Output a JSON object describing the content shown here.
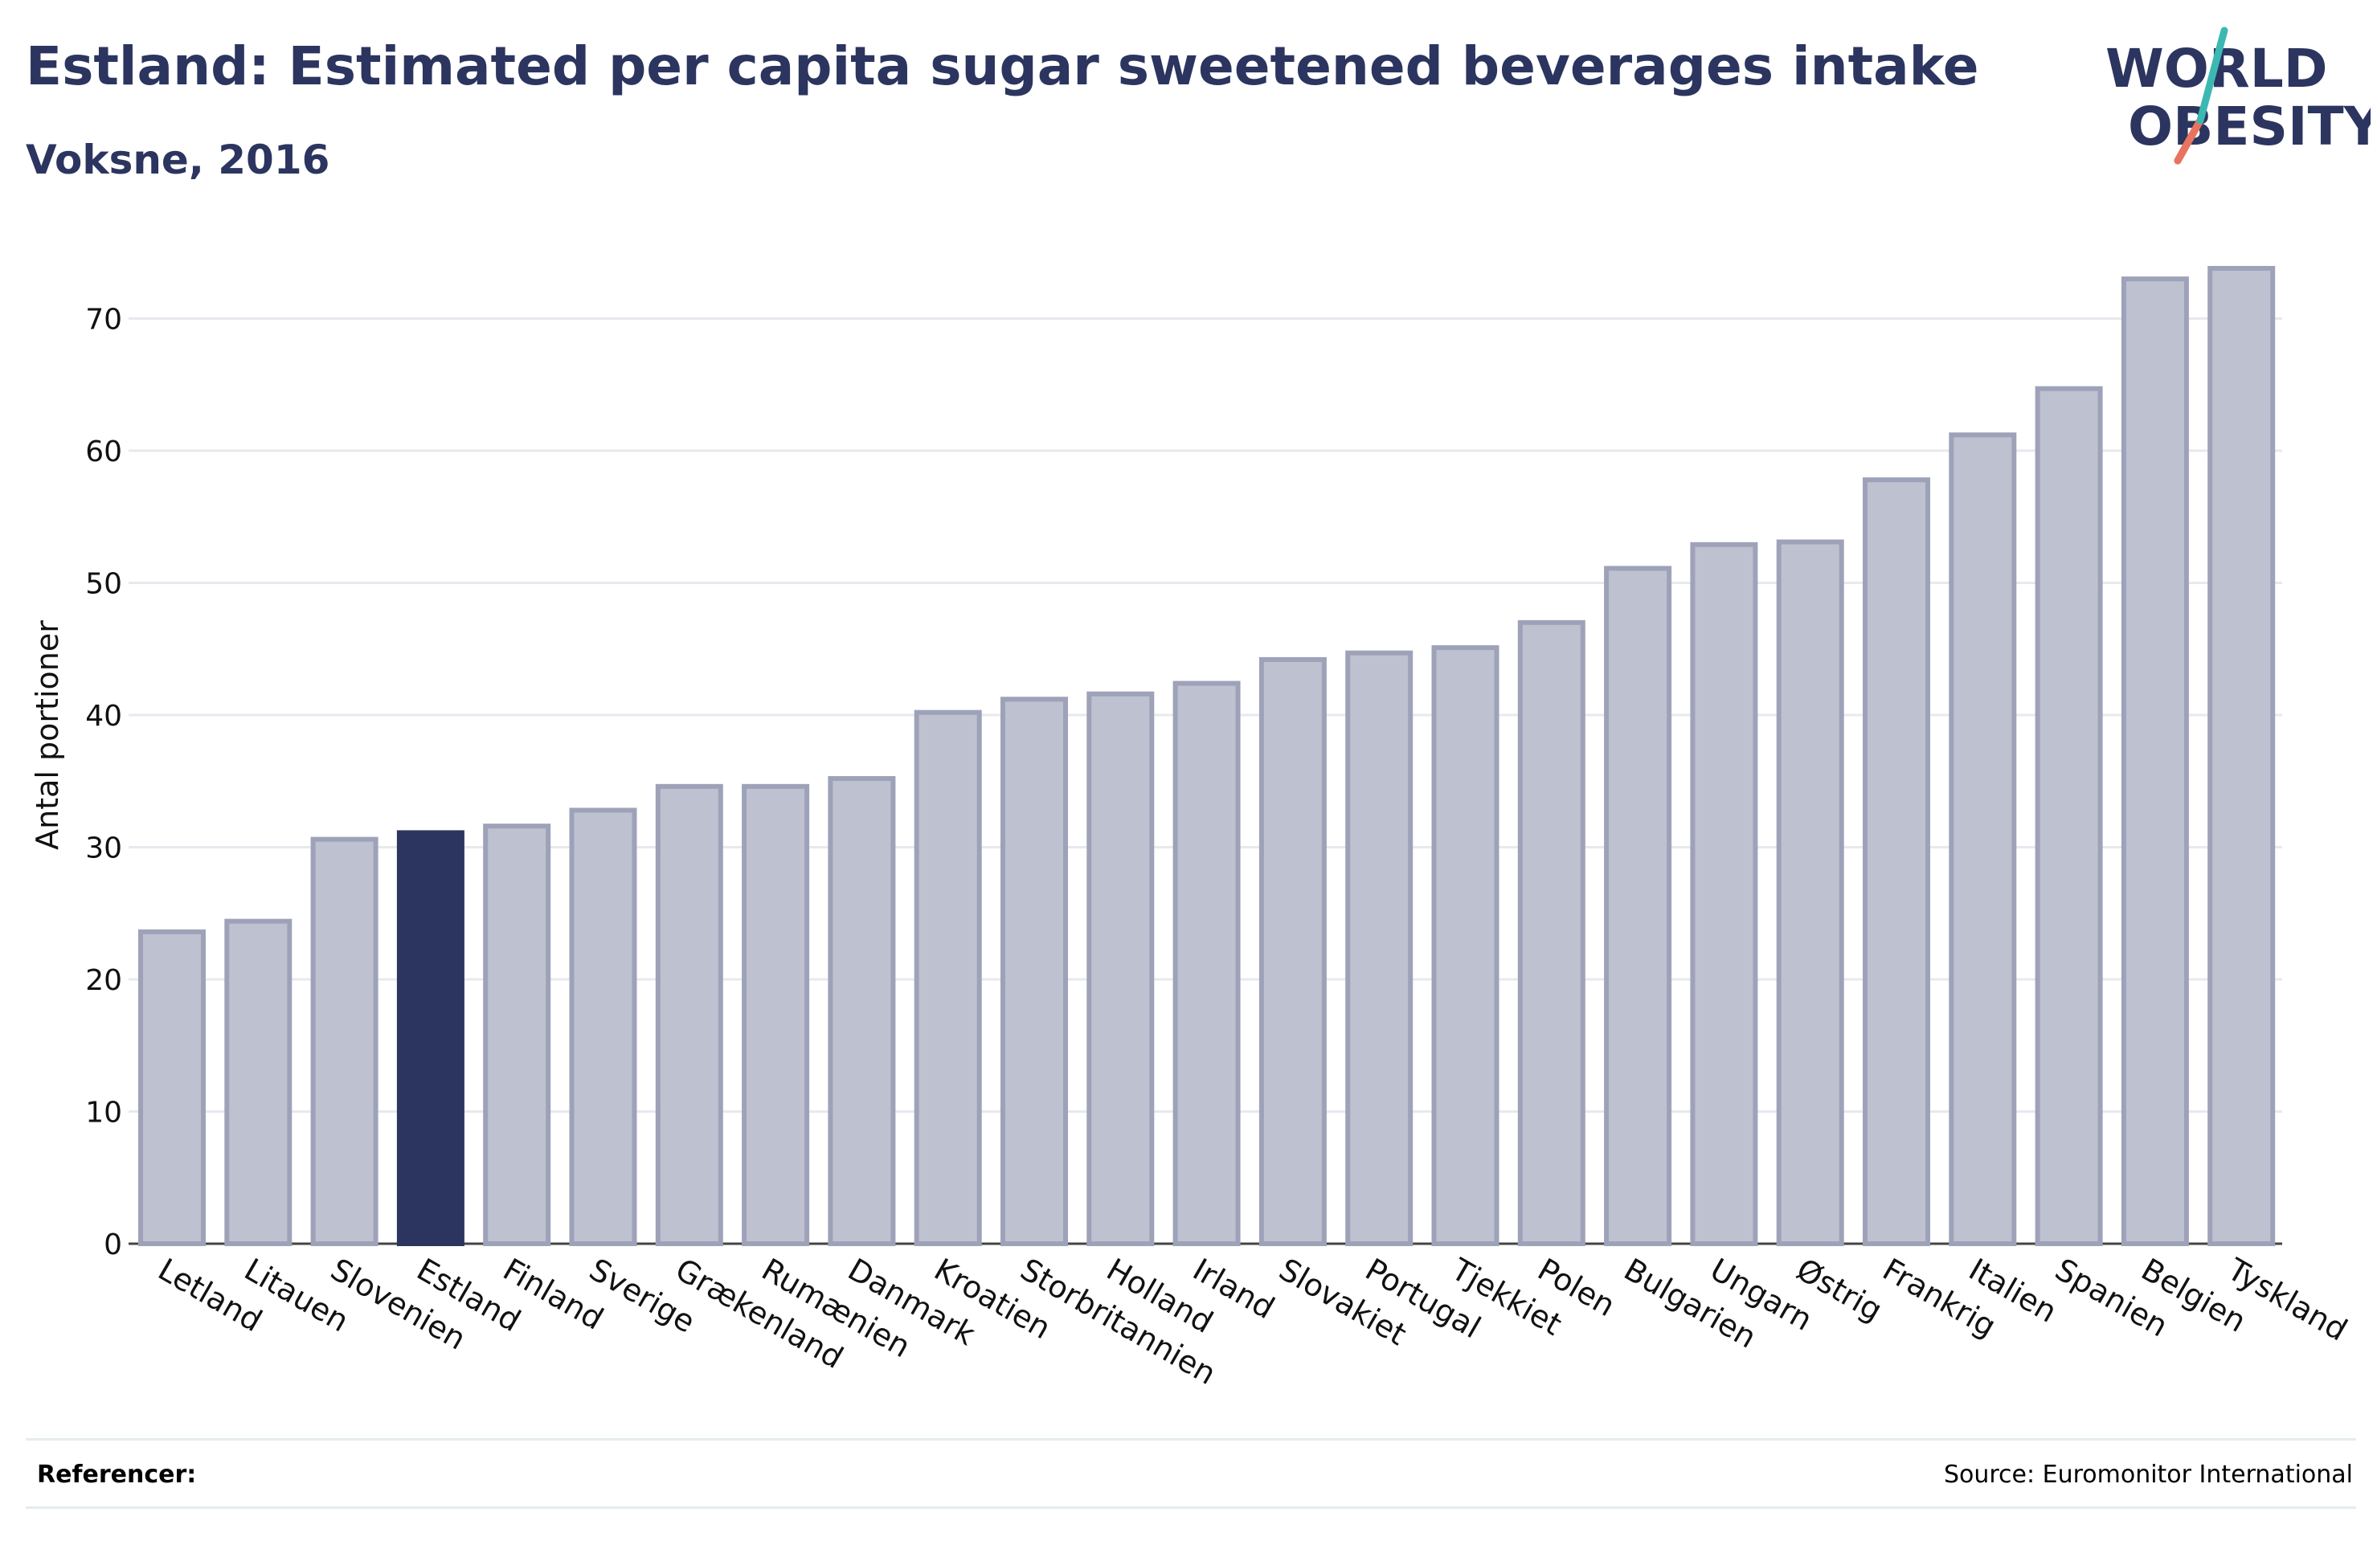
{
  "header": {
    "title": "Estland: Estimated per capita sugar sweetened beverages intake",
    "subtitle": "Voksne, 2016"
  },
  "logo": {
    "line1": "WORLD",
    "line2": "OBESITY"
  },
  "footer": {
    "references_label": "Referencer:",
    "source": "Source: Euromonitor International"
  },
  "colors": {
    "highlight": "#2b355f",
    "bar_fill": "#bec1cf",
    "bar_stroke": "#9ea2b9",
    "grid": "#e8e9ef"
  },
  "chart_data": {
    "type": "bar",
    "title": "Estland: Estimated per capita sugar sweetened beverages intake",
    "subtitle": "Voksne, 2016",
    "xlabel": "",
    "ylabel": "Antal portioner",
    "ylim": [
      0,
      76
    ],
    "yticks": [
      0,
      10,
      20,
      30,
      40,
      50,
      60,
      70
    ],
    "grid": true,
    "highlight": "Estland",
    "categories": [
      "Letland",
      "Litauen",
      "Slovenien",
      "Estland",
      "Finland",
      "Sverige",
      "Grækenland",
      "Rumænien",
      "Danmark",
      "Kroatien",
      "Storbritannien",
      "Holland",
      "Irland",
      "Slovakiet",
      "Portugal",
      "Tjekkiet",
      "Polen",
      "Bulgarien",
      "Ungarn",
      "Østrig",
      "Frankrig",
      "Italien",
      "Spanien",
      "Belgien",
      "Tyskland"
    ],
    "values": [
      23.6,
      24.4,
      30.6,
      31.1,
      31.6,
      32.8,
      34.6,
      34.6,
      35.2,
      40.2,
      41.2,
      41.6,
      42.4,
      44.2,
      44.7,
      45.1,
      47.0,
      51.1,
      52.9,
      53.1,
      57.8,
      61.2,
      64.7,
      73.0,
      73.8
    ]
  }
}
